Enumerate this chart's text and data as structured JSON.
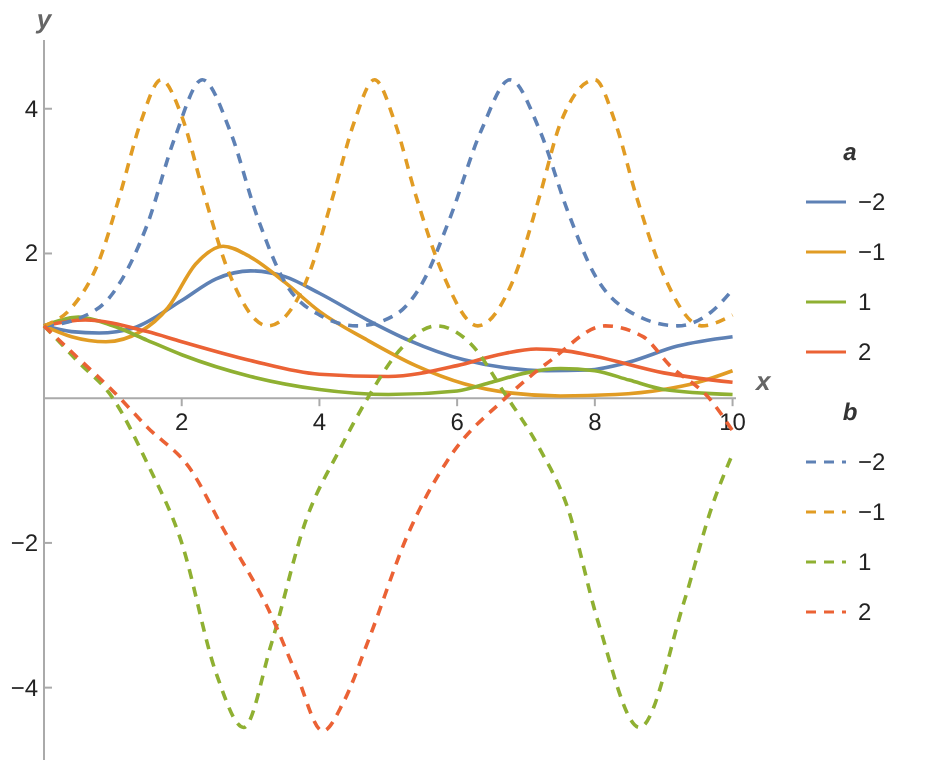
{
  "chart_data": {
    "type": "line",
    "xlabel": "x",
    "ylabel": "y",
    "legend_title": [
      "a",
      "b"
    ],
    "legend": "right",
    "grid": false,
    "xlim": [
      0,
      10.05
    ],
    "ylim": [
      -5.0,
      4.95
    ],
    "xticks": [
      2,
      4,
      6,
      8,
      10
    ],
    "yticks": [
      -4,
      -2,
      2,
      4
    ],
    "series": [
      {
        "name": "−2",
        "color": "#5e81b5",
        "line_style": "solid",
        "x": [
          0,
          0.4,
          0.8,
          1.3,
          2,
          2.5,
          3,
          3.5,
          4,
          4.7,
          5.3,
          6.1,
          6.7,
          7.3,
          7.9,
          8.5,
          9.2,
          10
        ],
        "values": [
          1,
          0.92,
          0.9,
          0.97,
          1.35,
          1.65,
          1.76,
          1.68,
          1.45,
          1.08,
          0.8,
          0.53,
          0.42,
          0.38,
          0.39,
          0.5,
          0.72,
          0.85
        ]
      },
      {
        "name": "−1",
        "color": "#e19c24",
        "line_style": "solid",
        "x": [
          0,
          0.4,
          0.9,
          1.4,
          1.8,
          2.2,
          2.6,
          3,
          3.5,
          4,
          4.7,
          5.4,
          6.1,
          6.8,
          7.5,
          8.3,
          9,
          9.5,
          10
        ],
        "values": [
          1,
          0.85,
          0.78,
          0.92,
          1.25,
          1.85,
          2.1,
          1.95,
          1.6,
          1.2,
          0.8,
          0.45,
          0.2,
          0.07,
          0.03,
          0.05,
          0.12,
          0.22,
          0.38
        ]
      },
      {
        "name": "1",
        "color": "#8fb032",
        "line_style": "solid",
        "x": [
          0,
          0.5,
          1,
          1.5,
          2,
          3,
          4,
          5,
          6,
          6.5,
          7,
          7.5,
          8,
          8.5,
          9,
          10
        ],
        "values": [
          1,
          1.12,
          1.0,
          0.8,
          0.6,
          0.3,
          0.12,
          0.05,
          0.1,
          0.22,
          0.35,
          0.41,
          0.38,
          0.25,
          0.12,
          0.05
        ]
      },
      {
        "name": "2",
        "color": "#eb6235",
        "line_style": "solid",
        "x": [
          0,
          0.6,
          1.5,
          2,
          3,
          4,
          5,
          6,
          6.6,
          7.15,
          7.6,
          8,
          9,
          10
        ],
        "values": [
          1,
          1.08,
          0.92,
          0.78,
          0.52,
          0.33,
          0.3,
          0.45,
          0.6,
          0.68,
          0.65,
          0.58,
          0.35,
          0.22
        ]
      },
      {
        "name": "−2",
        "color": "#5e81b5",
        "line_style": "dashed",
        "x": [
          0,
          0.5,
          1,
          1.5,
          1.9,
          2.3,
          2.7,
          3.1,
          3.5,
          4,
          4.55,
          5.1,
          5.5,
          5.9,
          6.35,
          6.77,
          7.2,
          7.6,
          8,
          8.5,
          9.2,
          9.7,
          10
        ],
        "values": [
          1,
          1.1,
          1.45,
          2.4,
          3.6,
          4.4,
          3.7,
          2.5,
          1.6,
          1.15,
          1.0,
          1.15,
          1.6,
          2.5,
          3.7,
          4.4,
          3.7,
          2.6,
          1.7,
          1.2,
          1.0,
          1.2,
          1.5
        ]
      },
      {
        "name": "−1",
        "color": "#e19c24",
        "line_style": "dashed",
        "x": [
          0,
          0.4,
          0.8,
          1.1,
          1.4,
          1.7,
          2.0,
          2.3,
          2.7,
          3.25,
          3.8,
          4.2,
          4.5,
          4.8,
          5.1,
          5.4,
          5.8,
          6.3,
          6.8,
          7.2,
          7.5,
          8.0,
          8.3,
          8.6,
          9.0,
          9.55,
          10
        ],
        "values": [
          1,
          1.25,
          1.9,
          2.8,
          3.8,
          4.4,
          3.9,
          2.9,
          1.7,
          1.0,
          1.6,
          2.8,
          3.8,
          4.4,
          3.8,
          2.8,
          1.7,
          1.0,
          1.6,
          2.8,
          3.8,
          4.4,
          3.8,
          2.8,
          1.7,
          1.0,
          1.15
        ]
      },
      {
        "name": "1",
        "color": "#8fb032",
        "line_style": "dashed",
        "x": [
          0,
          0.5,
          1,
          1.5,
          2,
          2.5,
          2.9,
          3.3,
          3.8,
          4.3,
          4.7,
          5.2,
          5.7,
          6.2,
          6.7,
          7.2,
          7.6,
          8.05,
          8.65,
          9.3,
          9.7,
          10
        ],
        "values": [
          1,
          0.5,
          0,
          -0.9,
          -2.0,
          -3.8,
          -4.55,
          -3.4,
          -1.7,
          -0.7,
          0,
          0.7,
          1.0,
          0.75,
          0.05,
          -0.7,
          -1.5,
          -3.1,
          -4.55,
          -2.8,
          -1.5,
          -0.77
        ]
      },
      {
        "name": "2",
        "color": "#eb6235",
        "line_style": "dashed",
        "x": [
          0,
          0.5,
          1,
          1.5,
          2.14,
          2.6,
          3.3,
          3.66,
          4.05,
          4.35,
          4.71,
          5.29,
          5.86,
          6.7,
          7.37,
          8.15,
          8.7,
          9.09,
          9.66,
          10
        ],
        "values": [
          1,
          0.55,
          0.1,
          -0.4,
          -1.0,
          -1.8,
          -3.0,
          -3.8,
          -4.6,
          -4.2,
          -3.35,
          -1.87,
          -0.86,
          0,
          0.53,
          1.0,
          0.85,
          0.45,
          0,
          -0.45
        ]
      }
    ]
  }
}
